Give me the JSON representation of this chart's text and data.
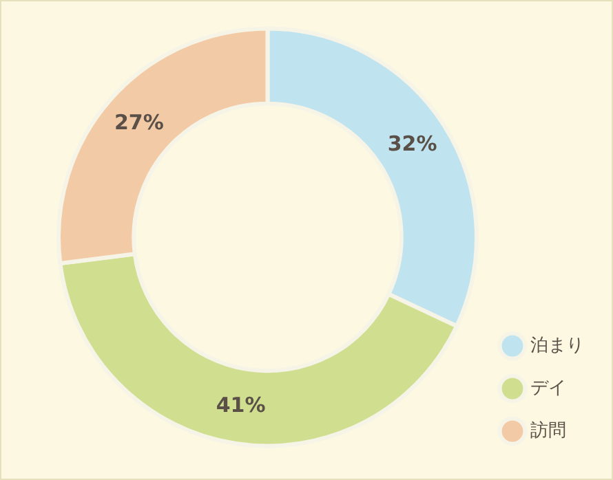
{
  "chart_data": {
    "type": "donut",
    "categories": [
      "泊まり",
      "デイ",
      "訪問"
    ],
    "values": [
      32,
      41,
      27
    ],
    "colors": [
      "#bfe3ef",
      "#d0de8f",
      "#f2cba6"
    ],
    "value_labels": [
      "32%",
      "41%",
      "27%"
    ],
    "legend": "bottom right"
  }
}
